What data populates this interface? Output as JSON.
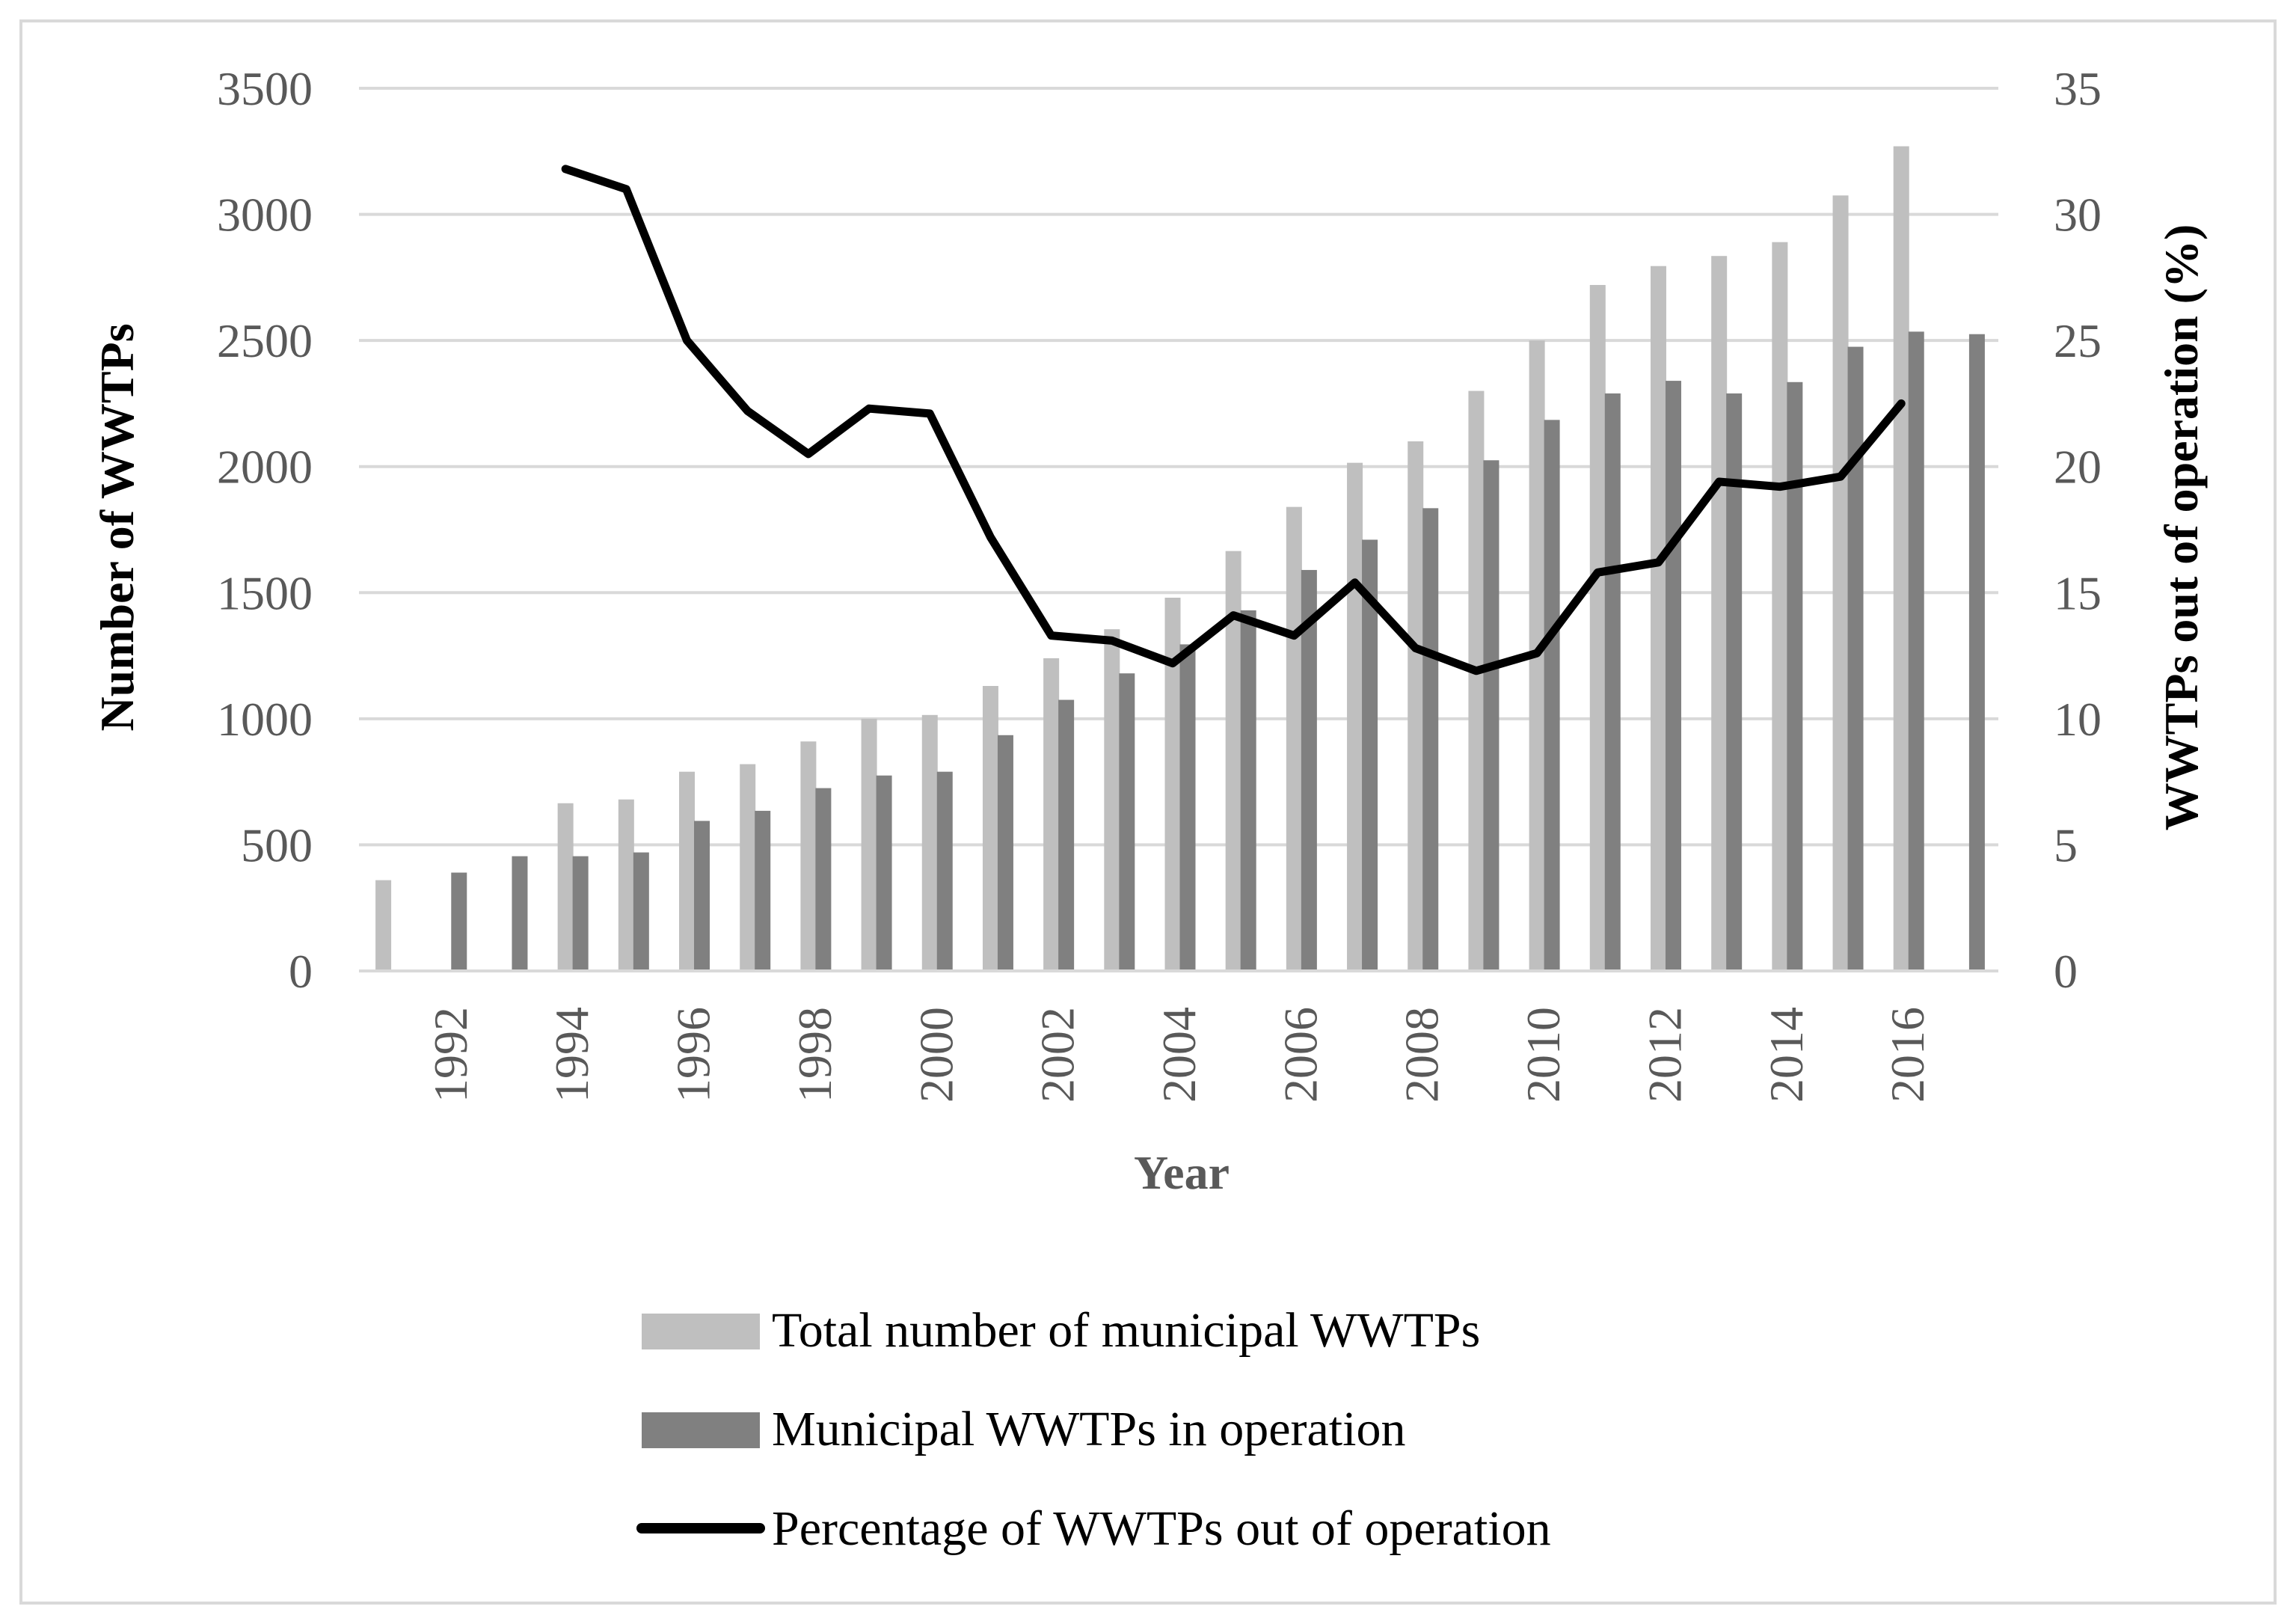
{
  "chart_data": {
    "type": "bar",
    "combo": "bar+line",
    "title": "",
    "xlabel": "Year",
    "ylabel": "Number of WWTPs",
    "y2label": "WWTPs out of operation (%)",
    "ylim": [
      0,
      3500
    ],
    "y2lim": [
      0,
      35
    ],
    "y_ticks": [
      "0",
      "500",
      "1000",
      "1500",
      "2000",
      "2500",
      "3000",
      "3500"
    ],
    "y2_ticks": [
      "0",
      "5",
      "10",
      "15",
      "20",
      "25",
      "30",
      "35"
    ],
    "x_tick_labels": [
      "1992",
      "1994",
      "1996",
      "1998",
      "2000",
      "2002",
      "2004",
      "2006",
      "2008",
      "2010",
      "2012",
      "2014",
      "2016"
    ],
    "categories": [
      1991,
      1992,
      1993,
      1994,
      1995,
      1996,
      1997,
      1998,
      1999,
      2000,
      2001,
      2002,
      2003,
      2004,
      2005,
      2006,
      2007,
      2008,
      2009,
      2010,
      2011,
      2012,
      2013,
      2014,
      2015,
      2016,
      2017
    ],
    "grid": true,
    "legend_position": "bottom",
    "series": [
      {
        "name": "Total number of municipal WWTPs",
        "type": "bar",
        "axis": "left",
        "color": "#BFBFBF",
        "values": [
          360,
          null,
          null,
          665,
          680,
          790,
          820,
          910,
          1000,
          1015,
          1130,
          1240,
          1355,
          1480,
          1665,
          1840,
          2015,
          2100,
          2300,
          2500,
          2720,
          2795,
          2835,
          2890,
          3075,
          3270,
          null
        ]
      },
      {
        "name": "Municipal WWTPs in operation",
        "type": "bar",
        "axis": "left",
        "color": "#808080",
        "values": [
          null,
          390,
          455,
          455,
          470,
          595,
          635,
          725,
          775,
          790,
          935,
          1075,
          1180,
          1295,
          1430,
          1590,
          1710,
          1835,
          2025,
          2185,
          2290,
          2340,
          2290,
          2335,
          2475,
          2535,
          2525
        ]
      },
      {
        "name": "Percentage of WWTPs out of operation",
        "type": "line",
        "axis": "right",
        "color": "#000000",
        "values": [
          null,
          null,
          null,
          31.8,
          31.0,
          25.0,
          22.2,
          20.5,
          22.3,
          22.1,
          17.2,
          13.3,
          13.1,
          12.2,
          14.1,
          13.3,
          15.4,
          12.8,
          11.9,
          12.6,
          15.8,
          16.2,
          19.4,
          19.2,
          19.6,
          22.5,
          null
        ]
      }
    ]
  }
}
